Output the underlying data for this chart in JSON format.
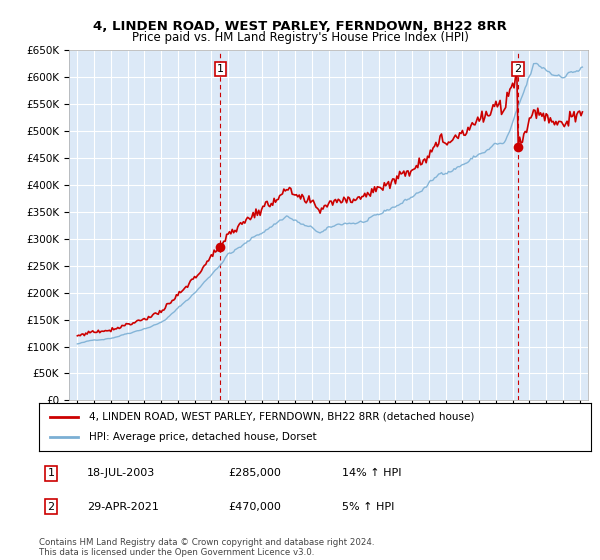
{
  "title": "4, LINDEN ROAD, WEST PARLEY, FERNDOWN, BH22 8RR",
  "subtitle": "Price paid vs. HM Land Registry's House Price Index (HPI)",
  "legend_line1": "4, LINDEN ROAD, WEST PARLEY, FERNDOWN, BH22 8RR (detached house)",
  "legend_line2": "HPI: Average price, detached house, Dorset",
  "transaction1_date": "18-JUL-2003",
  "transaction1_price": "£285,000",
  "transaction1_hpi": "14% ↑ HPI",
  "transaction1_year": 2003.54,
  "transaction1_value": 285000,
  "transaction2_date": "29-APR-2021",
  "transaction2_price": "£470,000",
  "transaction2_hpi": "5% ↑ HPI",
  "transaction2_year": 2021.33,
  "transaction2_value": 470000,
  "footer": "Contains HM Land Registry data © Crown copyright and database right 2024.\nThis data is licensed under the Open Government Licence v3.0.",
  "bg_color": "#dce9f7",
  "red_color": "#cc0000",
  "blue_color": "#7bafd4",
  "vline_color": "#cc0000",
  "grid_color": "#ffffff",
  "ylim_min": 0,
  "ylim_max": 650000,
  "xlim_min": 1994.5,
  "xlim_max": 2025.5
}
